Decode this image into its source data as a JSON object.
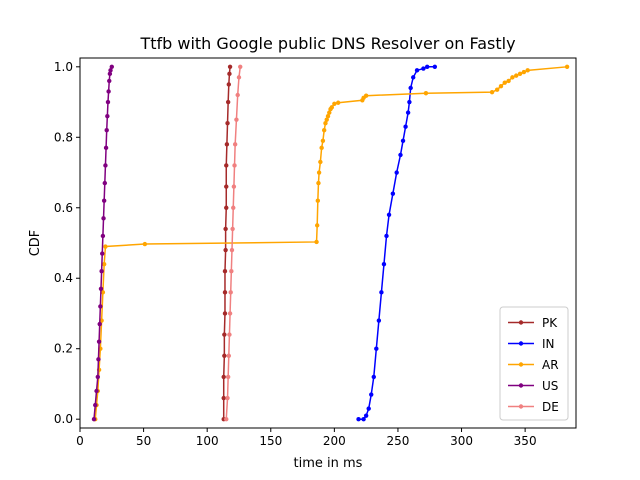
{
  "chart_data": {
    "type": "line",
    "title": "Ttfb with Google public DNS Resolver on Fastly",
    "xlabel": "time in ms",
    "ylabel": "CDF",
    "xlim": [
      0,
      390
    ],
    "ylim": [
      -0.025,
      1.025
    ],
    "xticks": [
      0,
      50,
      100,
      150,
      200,
      250,
      300,
      350
    ],
    "yticks": [
      0.0,
      0.2,
      0.4,
      0.6,
      0.8,
      1.0
    ],
    "xtick_labels": [
      "0",
      "50",
      "100",
      "150",
      "200",
      "250",
      "300",
      "350"
    ],
    "ytick_labels": [
      "0.0",
      "0.2",
      "0.4",
      "0.6",
      "0.8",
      "1.0"
    ],
    "grid": false,
    "legend_position": "bottom-right",
    "series": [
      {
        "name": "PK",
        "color": "#a52a2a",
        "x": [
          113,
          113,
          113,
          113.5,
          113.5,
          114,
          114,
          114,
          114.5,
          114.5,
          115,
          115,
          115,
          115.5,
          116,
          116.5,
          117,
          117.5,
          118
        ],
        "y": [
          0.0,
          0.06,
          0.12,
          0.18,
          0.24,
          0.3,
          0.36,
          0.42,
          0.48,
          0.54,
          0.6,
          0.66,
          0.72,
          0.78,
          0.84,
          0.9,
          0.95,
          0.98,
          1.0
        ]
      },
      {
        "name": "IN",
        "color": "#0000ff",
        "x": [
          219,
          223,
          225,
          227,
          229,
          231,
          233,
          235,
          237,
          239,
          241,
          243,
          246,
          249,
          252,
          254,
          256,
          258,
          259,
          260,
          262,
          265,
          270,
          273,
          279
        ],
        "y": [
          0.0,
          0.0,
          0.01,
          0.03,
          0.07,
          0.12,
          0.2,
          0.28,
          0.36,
          0.44,
          0.52,
          0.58,
          0.64,
          0.7,
          0.75,
          0.79,
          0.83,
          0.87,
          0.9,
          0.94,
          0.97,
          0.99,
          0.995,
          1.0,
          1.0
        ],
        "final_x": 279
      },
      {
        "name": "AR",
        "color": "#ffa500",
        "x": [
          12,
          13,
          14,
          15,
          16,
          17,
          18,
          19,
          20,
          51,
          186,
          186.5,
          187,
          187.5,
          188,
          189,
          190,
          191,
          192,
          193,
          194,
          195,
          196,
          197,
          198,
          200,
          203,
          222,
          223,
          225,
          272,
          324,
          328,
          331,
          334,
          337,
          340,
          343,
          346,
          349,
          352,
          383
        ],
        "y": [
          0.0,
          0.04,
          0.08,
          0.14,
          0.2,
          0.28,
          0.36,
          0.44,
          0.49,
          0.497,
          0.503,
          0.55,
          0.62,
          0.67,
          0.7,
          0.73,
          0.77,
          0.79,
          0.82,
          0.84,
          0.85,
          0.86,
          0.87,
          0.88,
          0.885,
          0.895,
          0.898,
          0.905,
          0.912,
          0.918,
          0.925,
          0.928,
          0.935,
          0.945,
          0.955,
          0.96,
          0.97,
          0.975,
          0.98,
          0.985,
          0.99,
          1.0
        ]
      },
      {
        "name": "US",
        "color": "#800080",
        "x": [
          11,
          12,
          13,
          14,
          14.5,
          15,
          15.5,
          16,
          16.5,
          17,
          17.5,
          18,
          18.5,
          19,
          19.5,
          20,
          20.5,
          21,
          21.5,
          22,
          22.5,
          23,
          23.5,
          24,
          25
        ],
        "y": [
          0.0,
          0.04,
          0.08,
          0.12,
          0.17,
          0.22,
          0.27,
          0.32,
          0.37,
          0.42,
          0.47,
          0.52,
          0.57,
          0.62,
          0.67,
          0.72,
          0.77,
          0.82,
          0.86,
          0.9,
          0.93,
          0.96,
          0.98,
          0.99,
          1.0
        ]
      },
      {
        "name": "DE",
        "color": "#f08080",
        "x": [
          115,
          116,
          116.5,
          117,
          117.5,
          118,
          118.5,
          119,
          119.5,
          120,
          120.5,
          121,
          121.5,
          122,
          123,
          124,
          125,
          126
        ],
        "y": [
          0.0,
          0.06,
          0.12,
          0.18,
          0.24,
          0.3,
          0.36,
          0.42,
          0.48,
          0.54,
          0.6,
          0.66,
          0.72,
          0.78,
          0.85,
          0.92,
          0.97,
          1.0
        ]
      }
    ]
  }
}
